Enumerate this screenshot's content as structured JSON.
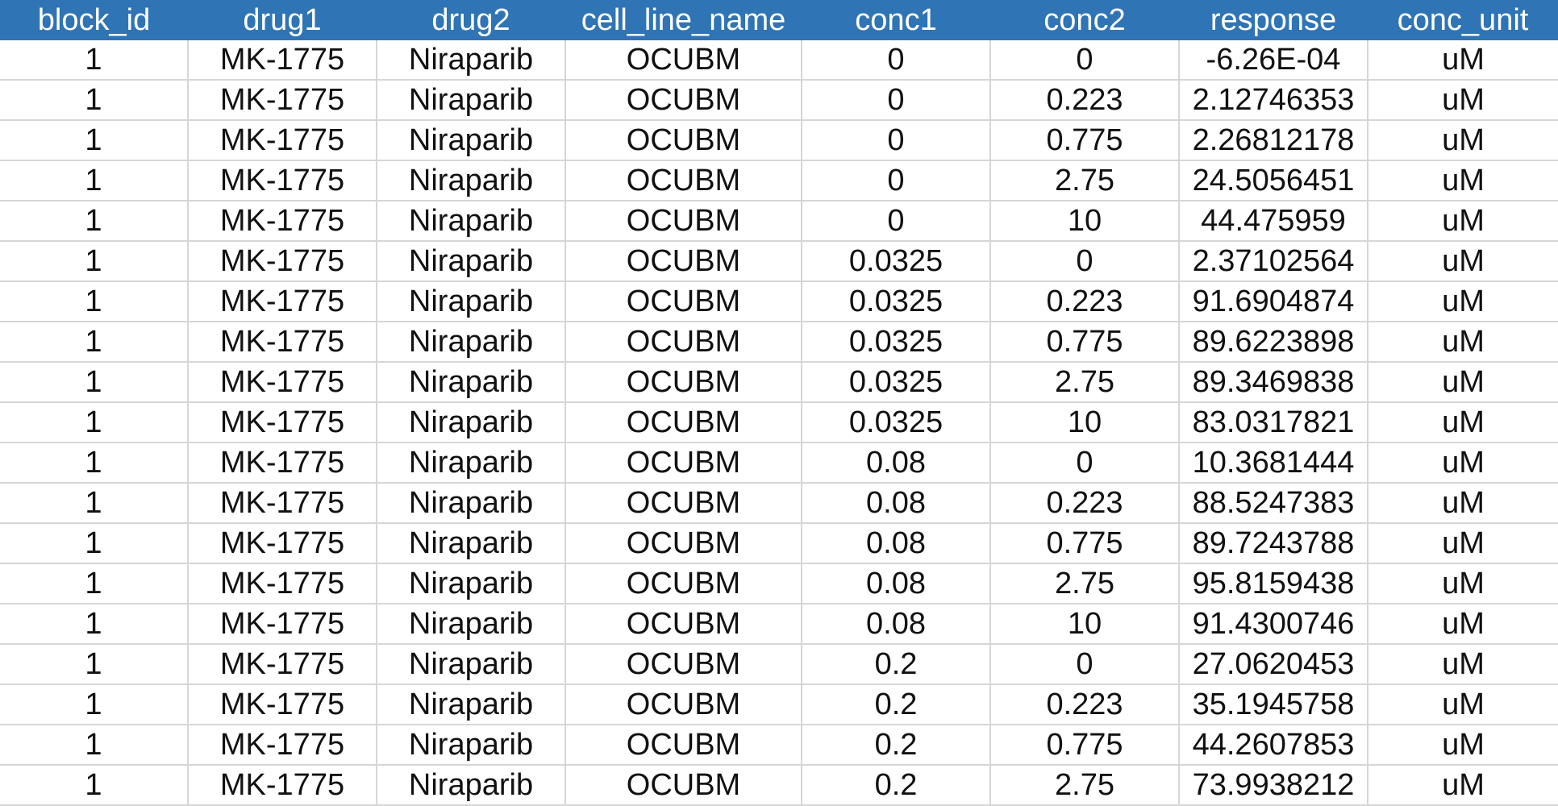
{
  "headers": [
    "block_id",
    "drug1",
    "drug2",
    "cell_line_name",
    "conc1",
    "conc2",
    "response",
    "conc_unit"
  ],
  "rows": [
    [
      "1",
      "MK-1775",
      "Niraparib",
      "OCUBM",
      "0",
      "0",
      "-6.26E-04",
      "uM"
    ],
    [
      "1",
      "MK-1775",
      "Niraparib",
      "OCUBM",
      "0",
      "0.223",
      "2.12746353",
      "uM"
    ],
    [
      "1",
      "MK-1775",
      "Niraparib",
      "OCUBM",
      "0",
      "0.775",
      "2.26812178",
      "uM"
    ],
    [
      "1",
      "MK-1775",
      "Niraparib",
      "OCUBM",
      "0",
      "2.75",
      "24.5056451",
      "uM"
    ],
    [
      "1",
      "MK-1775",
      "Niraparib",
      "OCUBM",
      "0",
      "10",
      "44.475959",
      "uM"
    ],
    [
      "1",
      "MK-1775",
      "Niraparib",
      "OCUBM",
      "0.0325",
      "0",
      "2.37102564",
      "uM"
    ],
    [
      "1",
      "MK-1775",
      "Niraparib",
      "OCUBM",
      "0.0325",
      "0.223",
      "91.6904874",
      "uM"
    ],
    [
      "1",
      "MK-1775",
      "Niraparib",
      "OCUBM",
      "0.0325",
      "0.775",
      "89.6223898",
      "uM"
    ],
    [
      "1",
      "MK-1775",
      "Niraparib",
      "OCUBM",
      "0.0325",
      "2.75",
      "89.3469838",
      "uM"
    ],
    [
      "1",
      "MK-1775",
      "Niraparib",
      "OCUBM",
      "0.0325",
      "10",
      "83.0317821",
      "uM"
    ],
    [
      "1",
      "MK-1775",
      "Niraparib",
      "OCUBM",
      "0.08",
      "0",
      "10.3681444",
      "uM"
    ],
    [
      "1",
      "MK-1775",
      "Niraparib",
      "OCUBM",
      "0.08",
      "0.223",
      "88.5247383",
      "uM"
    ],
    [
      "1",
      "MK-1775",
      "Niraparib",
      "OCUBM",
      "0.08",
      "0.775",
      "89.7243788",
      "uM"
    ],
    [
      "1",
      "MK-1775",
      "Niraparib",
      "OCUBM",
      "0.08",
      "2.75",
      "95.8159438",
      "uM"
    ],
    [
      "1",
      "MK-1775",
      "Niraparib",
      "OCUBM",
      "0.08",
      "10",
      "91.4300746",
      "uM"
    ],
    [
      "1",
      "MK-1775",
      "Niraparib",
      "OCUBM",
      "0.2",
      "0",
      "27.0620453",
      "uM"
    ],
    [
      "1",
      "MK-1775",
      "Niraparib",
      "OCUBM",
      "0.2",
      "0.223",
      "35.1945758",
      "uM"
    ],
    [
      "1",
      "MK-1775",
      "Niraparib",
      "OCUBM",
      "0.2",
      "0.775",
      "44.2607853",
      "uM"
    ],
    [
      "1",
      "MK-1775",
      "Niraparib",
      "OCUBM",
      "0.2",
      "2.75",
      "73.9938212",
      "uM"
    ]
  ],
  "colors": {
    "header_background": "#2f74b5",
    "header_text": "#ffffff",
    "gridline": "#d6d6d6",
    "cell_text": "#111111"
  }
}
